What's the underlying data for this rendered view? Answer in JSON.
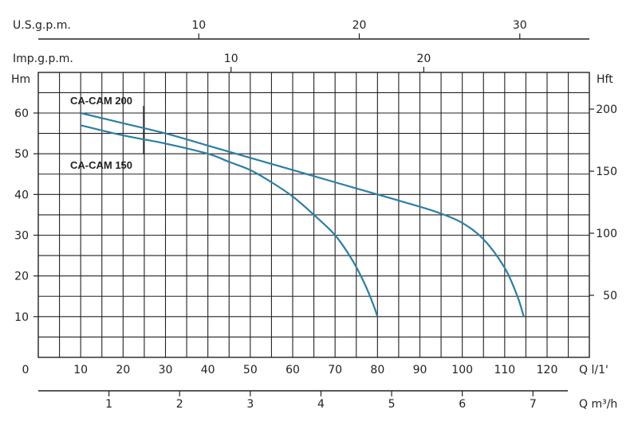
{
  "chart_data": {
    "type": "line",
    "title": "",
    "grid": true,
    "x": {
      "label": "Q l/1'",
      "range": [
        0,
        130
      ],
      "ticks": [
        0,
        10,
        20,
        30,
        40,
        50,
        60,
        70,
        80,
        90,
        100,
        110,
        120
      ]
    },
    "x_secondary": [
      {
        "label": "U.S.g.p.m.",
        "ticks": [
          10,
          20,
          30
        ]
      },
      {
        "label": "Imp.g.p.m.",
        "ticks": [
          10,
          20
        ]
      },
      {
        "label": "Q m³/h",
        "ticks": [
          1,
          2,
          3,
          4,
          5,
          6,
          7
        ]
      }
    ],
    "y": {
      "label": "Hm",
      "range": [
        0,
        70
      ],
      "ticks": [
        10,
        20,
        30,
        40,
        50,
        60
      ]
    },
    "y_secondary": {
      "label": "Hft",
      "ticks": [
        50,
        100,
        150,
        200
      ]
    },
    "series": [
      {
        "name": "CA-CAM 200",
        "color": "#2b7fa6",
        "points": [
          [
            10,
            60
          ],
          [
            20,
            57.5
          ],
          [
            30,
            55
          ],
          [
            40,
            52
          ],
          [
            50,
            49
          ],
          [
            60,
            46
          ],
          [
            70,
            43
          ],
          [
            80,
            40
          ],
          [
            90,
            37
          ],
          [
            95,
            35.3
          ],
          [
            100,
            33
          ],
          [
            105,
            29
          ],
          [
            110,
            22
          ],
          [
            113,
            15
          ],
          [
            114.5,
            10
          ]
        ]
      },
      {
        "name": "CA-CAM 150",
        "color": "#2b7fa6",
        "points": [
          [
            10,
            57
          ],
          [
            20,
            54.5
          ],
          [
            30,
            52.5
          ],
          [
            40,
            50
          ],
          [
            45,
            48
          ],
          [
            50,
            46
          ],
          [
            55,
            43
          ],
          [
            60,
            39.5
          ],
          [
            65,
            35
          ],
          [
            70,
            30
          ],
          [
            74,
            24
          ],
          [
            77,
            18
          ],
          [
            79,
            13
          ],
          [
            80,
            10
          ]
        ]
      }
    ],
    "annotations": [
      "CA-CAM 200",
      "CA-CAM 150"
    ]
  },
  "labels": {
    "usgpm_title": "U.S.g.p.m.",
    "impgpm_title": "Imp.g.p.m.",
    "hm_title": "Hm",
    "hft_title": "Hft",
    "q_lmin": "Q  l/1'",
    "q_m3h": "Q  m³/h"
  }
}
